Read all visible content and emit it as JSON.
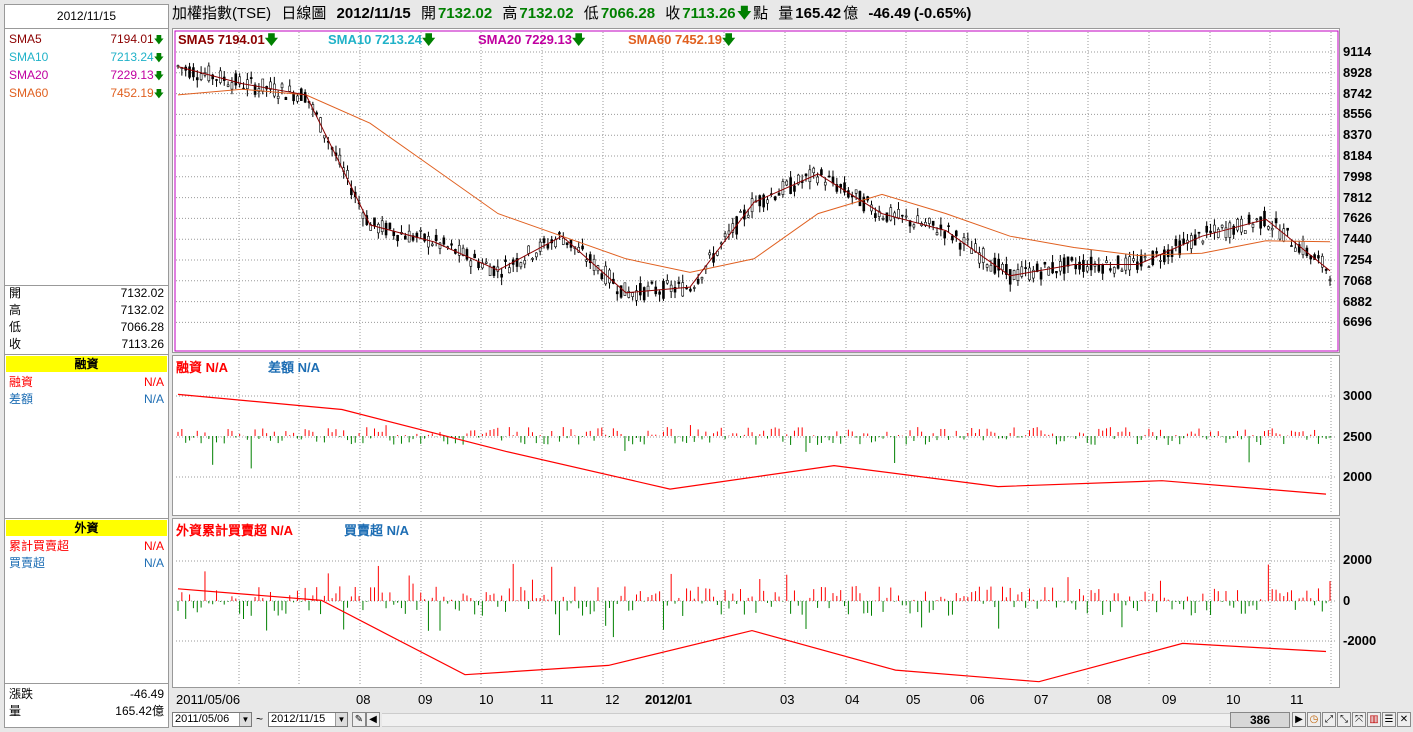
{
  "left_panel": {
    "date": "2012/11/15",
    "sma": [
      {
        "label": "SMA5",
        "value": "7194.01",
        "color": "#8b0000"
      },
      {
        "label": "SMA10",
        "value": "7213.24",
        "color": "#20b2c8"
      },
      {
        "label": "SMA20",
        "value": "7229.13",
        "color": "#c000a0"
      },
      {
        "label": "SMA60",
        "value": "7452.19",
        "color": "#e06020"
      }
    ],
    "ohlc": [
      {
        "label": "開",
        "value": "7132.02"
      },
      {
        "label": "高",
        "value": "7132.02"
      },
      {
        "label": "低",
        "value": "7066.28"
      },
      {
        "label": "收",
        "value": "7113.26"
      }
    ],
    "margin_title": "融資",
    "margin_rows": [
      {
        "label": "融資",
        "value": "N/A",
        "color": "#ff0000"
      },
      {
        "label": "差額",
        "value": "N/A",
        "color": "#1e6eb4"
      }
    ],
    "foreign_title": "外資",
    "foreign_rows": [
      {
        "label": "累計買賣超",
        "value": "N/A",
        "color": "#ff0000"
      },
      {
        "label": "買賣超",
        "value": "N/A",
        "color": "#1e6eb4"
      }
    ],
    "bottom": [
      {
        "label": "漲跌",
        "value": "-46.49"
      },
      {
        "label": "量",
        "value": "165.42億"
      }
    ]
  },
  "header": {
    "name": "加權指數(TSE)",
    "chart_kind": "日線圖",
    "date": "2012/11/15",
    "open_label": "開",
    "open": "7132.02",
    "high_label": "高",
    "high": "7132.02",
    "low_label": "低",
    "low": "7066.28",
    "close_label": "收",
    "close": "7113.26",
    "point_label": "點",
    "volume_label": "量",
    "volume": "165.42",
    "volume_unit": "億",
    "change": "-46.49",
    "change_pct": "(-0.65%)"
  },
  "legends": {
    "price": [
      {
        "text": "SMA5 7194.01",
        "color": "#8b0000"
      },
      {
        "text": "SMA10 7213.24",
        "color": "#20b2c8"
      },
      {
        "text": "SMA20 7229.13",
        "color": "#c000a0"
      },
      {
        "text": "SMA60 7452.19",
        "color": "#e06020"
      }
    ],
    "margin": [
      {
        "text": "融資 N/A",
        "color": "#ff0000"
      },
      {
        "text": "差額 N/A",
        "color": "#1e6eb4"
      }
    ],
    "foreign": [
      {
        "text": "外資累計買賣超 N/A",
        "color": "#ff0000"
      },
      {
        "text": "買賣超 N/A",
        "color": "#1e6eb4"
      }
    ]
  },
  "axes": {
    "price_ticks": [
      "9114",
      "8928",
      "8742",
      "8556",
      "8370",
      "8184",
      "7998",
      "7812",
      "7626",
      "7440",
      "7254",
      "7068",
      "6882",
      "6696"
    ],
    "margin_ticks": [
      "3000",
      "2500",
      "2000"
    ],
    "foreign_ticks": [
      "2000",
      "0",
      "-2000"
    ],
    "x_ticks": [
      "2011/05/06",
      "08",
      "09",
      "10",
      "11",
      "12",
      "2012/01",
      "03",
      "04",
      "05",
      "06",
      "07",
      "08",
      "09",
      "10",
      "11"
    ]
  },
  "bottom_bar": {
    "from": "2011/05/06",
    "to": "2012/11/15",
    "tilde": "~",
    "count": "386"
  },
  "colors": {
    "up": "#ff0000",
    "down": "#008000",
    "frame": "#c000c0"
  },
  "chart_data": [
    {
      "type": "line",
      "title": "加權指數(TSE) 日線圖",
      "x": [
        "2011/05",
        "2011/06",
        "2011/07",
        "2011/08",
        "2011/09",
        "2011/10",
        "2011/11",
        "2011/12",
        "2012/01",
        "2012/02",
        "2012/03",
        "2012/04",
        "2012/05",
        "2012/06",
        "2012/07",
        "2012/08",
        "2012/09",
        "2012/10",
        "2012/11"
      ],
      "series": [
        {
          "name": "SMA5",
          "values": [
            9000,
            8850,
            8750,
            7600,
            7450,
            7200,
            7500,
            7000,
            7050,
            7800,
            8050,
            7700,
            7550,
            7150,
            7250,
            7250,
            7500,
            7650,
            7194
          ]
        },
        {
          "name": "SMA60",
          "values": [
            8750,
            8800,
            8750,
            8500,
            8100,
            7700,
            7500,
            7300,
            7180,
            7300,
            7700,
            7870,
            7700,
            7500,
            7400,
            7330,
            7350,
            7460,
            7452
          ]
        }
      ],
      "ylim": [
        6600,
        9200
      ]
    },
    {
      "type": "line",
      "title": "融資",
      "x": [
        "2011/05",
        "2011/08",
        "2011/11",
        "2012/01",
        "2012/04",
        "2012/07",
        "2012/10",
        "2012/11"
      ],
      "series": [
        {
          "name": "融資",
          "values": [
            2980,
            2800,
            2300,
            1850,
            2130,
            1880,
            1950,
            1790
          ]
        }
      ],
      "ylim": [
        1600,
        3200
      ]
    },
    {
      "type": "line",
      "title": "外資累計買賣超",
      "x": [
        "2011/05",
        "2011/08",
        "2011/10",
        "2012/01",
        "2012/04",
        "2012/06",
        "2012/08",
        "2012/10",
        "2012/11"
      ],
      "series": [
        {
          "name": "外資累計買賣超",
          "values": [
            500,
            0,
            -3200,
            -2800,
            -1300,
            -3000,
            -3500,
            -1850,
            -2200
          ]
        }
      ],
      "ylim": [
        -3600,
        2600
      ]
    }
  ]
}
